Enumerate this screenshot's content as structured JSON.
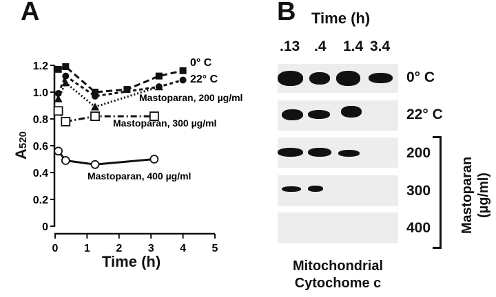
{
  "panel_a": "A",
  "panel_b": "B",
  "chart_data": {
    "type": "line",
    "xlabel": "Time (h)",
    "ylabel": "A520",
    "ylabel_main": "A",
    "ylabel_sub": "520",
    "xlim": [
      0,
      5
    ],
    "ylim": [
      0,
      1.2
    ],
    "xticks": [
      "0",
      "1",
      "2",
      "3",
      "4",
      "5"
    ],
    "yticks": [
      "0",
      "0.2",
      "0.4",
      "0.6",
      "0.8",
      "1.0",
      "1.2"
    ],
    "series": [
      {
        "name": "0° C",
        "marker": "filled-square",
        "dash": "9,5",
        "x": [
          0.1,
          0.33,
          1.25,
          2.25,
          3.25,
          4
        ],
        "y": [
          1.17,
          1.19,
          1.0,
          1.02,
          1.12,
          1.16
        ]
      },
      {
        "name": "22° C",
        "marker": "filled-circle",
        "dash": "5,4",
        "x": [
          0.1,
          0.33,
          1.25,
          3.25,
          4
        ],
        "y": [
          0.99,
          1.12,
          0.97,
          1.04,
          1.09
        ]
      },
      {
        "name": "Mastoparan, 200 µg/ml",
        "marker": "filled-triangle",
        "dash": "2,3",
        "x": [
          0.1,
          0.33,
          1.25,
          3.25
        ],
        "y": [
          0.95,
          1.07,
          0.89,
          1.04
        ]
      },
      {
        "name": "Mastoparan, 300 µg/ml",
        "marker": "open-square",
        "dash": "9,4,2,4",
        "x": [
          0.1,
          0.33,
          1.25,
          3.1
        ],
        "y": [
          0.86,
          0.78,
          0.82,
          0.82
        ]
      },
      {
        "name": "Mastoparan, 400 µg/ml",
        "marker": "open-circle",
        "dash": "",
        "x": [
          0.1,
          0.33,
          1.25,
          3.1
        ],
        "y": [
          0.56,
          0.49,
          0.46,
          0.5
        ]
      }
    ]
  },
  "blot": {
    "title": "Time (h)",
    "times": [
      ".13",
      ".4",
      "1.4",
      "3.4"
    ],
    "rows": [
      "0° C",
      "22° C",
      "200",
      "300",
      "400"
    ],
    "bracket_label": "Mastoparan",
    "bracket_unit": "(µg/ml)",
    "caption_line1": "Mitochondrial",
    "caption_line2": "Cytochome c"
  }
}
